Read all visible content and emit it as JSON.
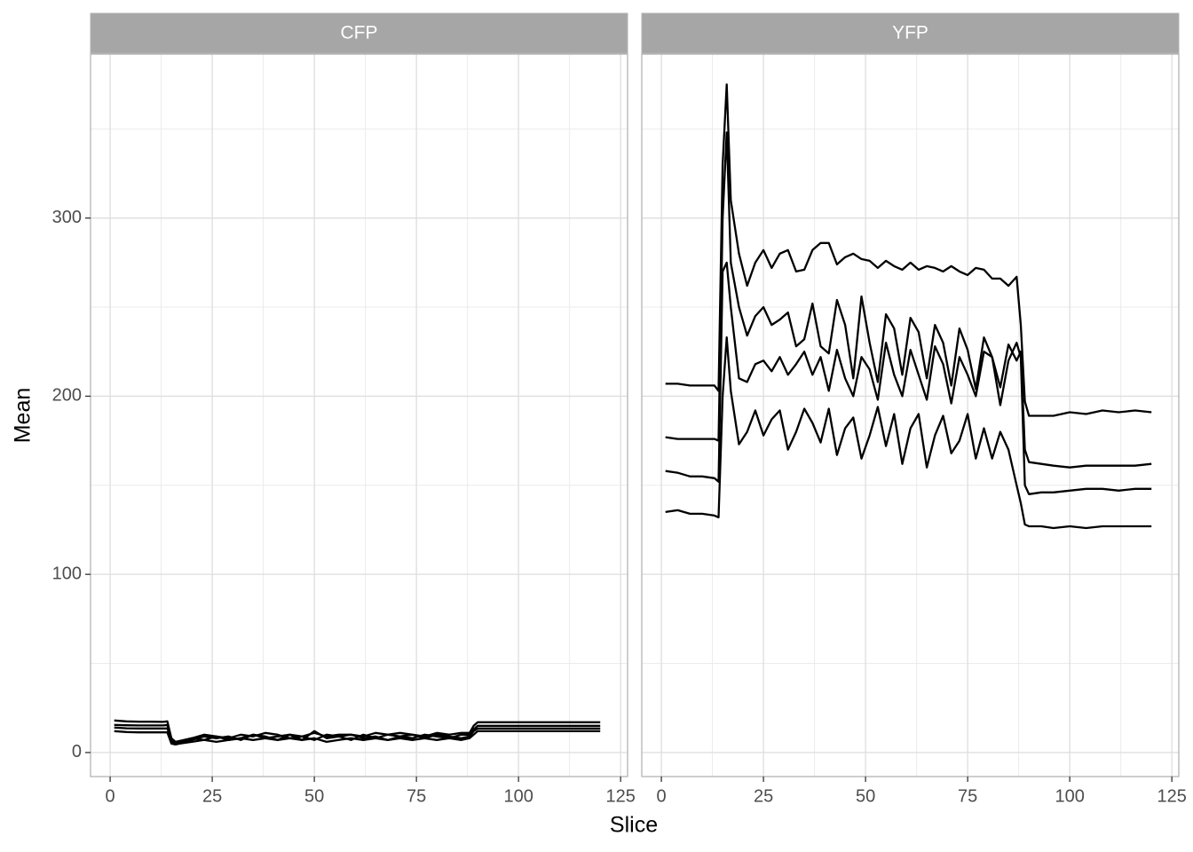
{
  "chart_data": [
    {
      "type": "line",
      "title": "CFP",
      "xlabel": "Slice",
      "ylabel": "Mean",
      "xlim": [
        -4.8,
        126.7
      ],
      "xticks": [
        0,
        25,
        50,
        75,
        100,
        125
      ],
      "xminor": [
        12.5,
        37.5,
        62.5,
        87.5,
        112.5
      ],
      "ylim": [
        -13.5,
        392
      ],
      "yticks": [
        0,
        100,
        200,
        300
      ],
      "yminor": [
        50,
        150,
        250,
        350
      ],
      "grid": true,
      "x": [
        1,
        4,
        7,
        10,
        13,
        14,
        15,
        16,
        17,
        20,
        23,
        26,
        29,
        32,
        35,
        38,
        41,
        44,
        47,
        50,
        53,
        56,
        59,
        62,
        65,
        68,
        71,
        74,
        77,
        80,
        83,
        86,
        88,
        89,
        90,
        95,
        100,
        105,
        110,
        115,
        120
      ],
      "series": [
        {
          "color": "#000000",
          "values": [
            18,
            17.5,
            17.3,
            17.3,
            17.2,
            17.5,
            8,
            6,
            6.5,
            8,
            10,
            9,
            8,
            10,
            9,
            11,
            10,
            8,
            9,
            11,
            9,
            10,
            10,
            9,
            11,
            10,
            11,
            10,
            9,
            11,
            10,
            11,
            11,
            15,
            17,
            17,
            17,
            17,
            17,
            17,
            17
          ]
        },
        {
          "color": "#000000",
          "values": [
            15.5,
            15.3,
            15.2,
            15.2,
            15.2,
            15.5,
            6,
            5,
            5.5,
            7,
            9,
            8,
            9,
            7,
            10,
            8,
            9,
            10,
            7,
            12,
            8,
            9,
            7,
            10,
            8,
            10,
            9,
            8,
            10,
            9,
            8,
            10,
            10,
            13,
            15,
            15,
            15,
            15,
            15,
            15,
            15
          ]
        },
        {
          "color": "#000000",
          "values": [
            14,
            13.6,
            13.5,
            13.5,
            13.5,
            13.5,
            7,
            6,
            6,
            8,
            7,
            9,
            7,
            8,
            10,
            9,
            7,
            10,
            9,
            7,
            10,
            9,
            10,
            8,
            9,
            7,
            9,
            10,
            8,
            10,
            9,
            8,
            9,
            12,
            13.5,
            13.5,
            13.5,
            13.5,
            13.5,
            13.5,
            13.5
          ]
        },
        {
          "color": "#000000",
          "values": [
            12,
            11.5,
            11.3,
            11.3,
            11.3,
            11.3,
            5,
            4.5,
            5,
            6,
            7,
            6,
            7,
            8,
            7,
            8,
            7,
            8,
            7,
            8,
            6,
            7,
            8,
            7,
            8,
            7,
            8,
            7,
            8,
            7,
            8,
            7,
            8,
            10,
            12,
            12,
            12,
            12,
            12,
            12,
            12
          ]
        }
      ]
    },
    {
      "type": "line",
      "title": "YFP",
      "xlim": [
        -4.8,
        126.7
      ],
      "xticks": [
        0,
        25,
        50,
        75,
        100,
        125
      ],
      "x": [
        1,
        4,
        7,
        10,
        13,
        14,
        15,
        16,
        17,
        19,
        21,
        23,
        25,
        27,
        29,
        31,
        33,
        35,
        37,
        39,
        41,
        43,
        45,
        47,
        49,
        51,
        53,
        55,
        57,
        59,
        61,
        63,
        65,
        67,
        69,
        71,
        73,
        75,
        77,
        79,
        81,
        83,
        85,
        87,
        88,
        89,
        90,
        93,
        96,
        100,
        104,
        108,
        112,
        116,
        120
      ],
      "series": [
        {
          "color": "#000000",
          "values": [
            207,
            207,
            206,
            206,
            206,
            203,
            330,
            375,
            310,
            280,
            262,
            275,
            282,
            272,
            280,
            282,
            270,
            271,
            282,
            286,
            286,
            274,
            278,
            280,
            277,
            276,
            272,
            276,
            273,
            271,
            275,
            271,
            273,
            272,
            270,
            273,
            270,
            268,
            272,
            271,
            266,
            266,
            262,
            267,
            240,
            197,
            189,
            189,
            189,
            191,
            190,
            192,
            191,
            192,
            191
          ]
        },
        {
          "color": "#000000",
          "values": [
            177,
            176,
            176,
            176,
            176,
            175,
            300,
            348,
            275,
            250,
            234,
            245,
            250,
            240,
            243,
            247,
            228,
            232,
            252,
            228,
            224,
            254,
            240,
            210,
            256,
            230,
            208,
            246,
            238,
            212,
            244,
            236,
            210,
            240,
            230,
            206,
            238,
            226,
            204,
            233,
            222,
            205,
            229,
            220,
            225,
            170,
            163,
            162,
            161,
            160,
            161,
            161,
            161,
            161,
            162
          ]
        },
        {
          "color": "#000000",
          "values": [
            158,
            157,
            155,
            155,
            154,
            152,
            270,
            275,
            250,
            210,
            208,
            218,
            220,
            214,
            222,
            212,
            218,
            225,
            212,
            222,
            203,
            226,
            210,
            200,
            222,
            215,
            198,
            230,
            212,
            200,
            226,
            212,
            198,
            228,
            218,
            196,
            222,
            212,
            200,
            225,
            222,
            195,
            220,
            230,
            222,
            150,
            145,
            146,
            146,
            147,
            148,
            148,
            147,
            148,
            148
          ]
        },
        {
          "color": "#000000",
          "values": [
            135,
            136,
            134,
            134,
            133,
            132,
            200,
            233,
            203,
            173,
            180,
            192,
            178,
            187,
            192,
            170,
            180,
            193,
            185,
            174,
            193,
            167,
            182,
            188,
            165,
            178,
            194,
            172,
            190,
            162,
            182,
            190,
            160,
            178,
            189,
            168,
            175,
            190,
            165,
            182,
            165,
            180,
            170,
            150,
            140,
            128,
            127,
            127,
            126,
            127,
            126,
            127,
            127,
            127,
            127
          ]
        }
      ]
    }
  ]
}
